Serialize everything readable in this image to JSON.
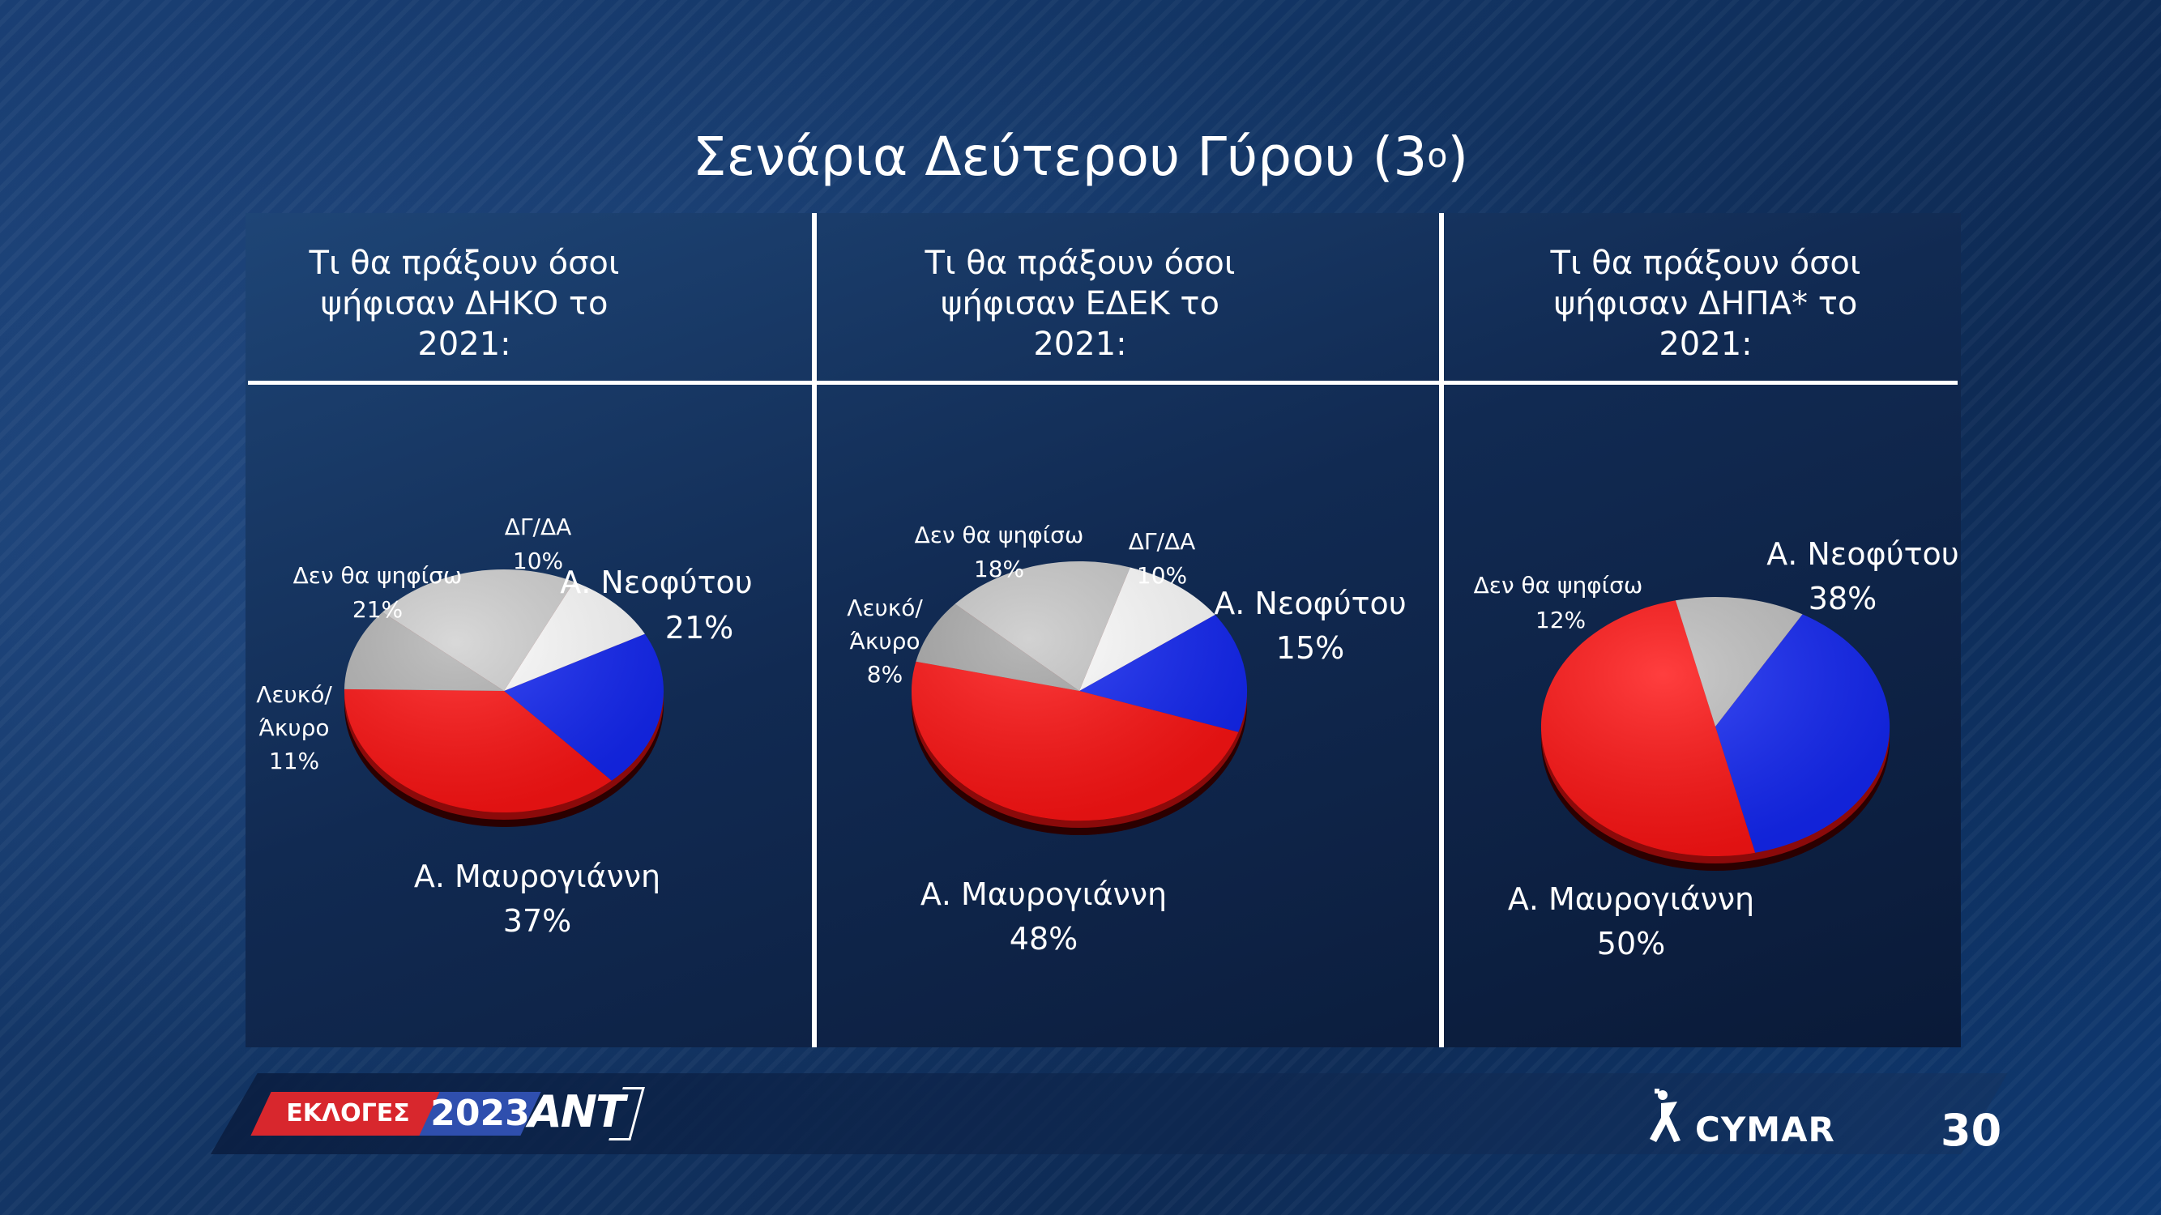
{
  "title": {
    "main": "Σενάρια Δεύτερου Γύρου (3",
    "sup": "ο",
    "close": ")"
  },
  "chart_data": [
    {
      "type": "pie",
      "title": [
        "Τι θα πράξουν όσοι",
        "ψήφισαν ΔΗΚΟ το",
        "2021:"
      ],
      "slices": [
        {
          "label": "Α. Νεοφύτου",
          "value": 21,
          "text": "21%",
          "color": "#1428f5"
        },
        {
          "label": "Α. Μαυρογιάννη",
          "value": 37,
          "text": "37%",
          "color": "#ff1414"
        },
        {
          "label": "Λευκό/ Άκυρο",
          "value": 11,
          "text": "11%",
          "color": "#b4b4b4"
        },
        {
          "label": "Δεν θα ψηφίσω",
          "value": 21,
          "text": "21%",
          "color": "#d0d0d0"
        },
        {
          "label": "ΔΓ/ΔΑ",
          "value": 10,
          "text": "10%",
          "color": "#ffffff"
        }
      ]
    },
    {
      "type": "pie",
      "title": [
        "Τι θα πράξουν όσοι",
        "ψήφισαν ΕΔΕΚ το",
        "2021:"
      ],
      "slices": [
        {
          "label": "Α. Νεοφύτου",
          "value": 15,
          "text": "15%",
          "color": "#1428f5"
        },
        {
          "label": "Α. Μαυρογιάννη",
          "value": 48,
          "text": "48%",
          "color": "#ff1414"
        },
        {
          "label": "Λευκό/ Άκυρο",
          "value": 8,
          "text": "8%",
          "color": "#a8a8a8"
        },
        {
          "label": "Δεν θα ψηφίσω",
          "value": 18,
          "text": "18%",
          "color": "#c8c8c8"
        },
        {
          "label": "ΔΓ/ΔΑ",
          "value": 10,
          "text": "10%",
          "color": "#ffffff"
        }
      ]
    },
    {
      "type": "pie",
      "title": [
        "Τι θα πράξουν όσοι",
        "ψήφισαν ΔΗΠΑ* το",
        "2021:"
      ],
      "slices": [
        {
          "label": "Α. Νεοφύτου",
          "value": 38,
          "text": "38%",
          "color": "#1428f5"
        },
        {
          "label": "Α. Μαυρογιάννη",
          "value": 50,
          "text": "50%",
          "color": "#ff1414"
        },
        {
          "label": "Δεν θα ψηφίσω",
          "value": 12,
          "text": "12%",
          "color": "#c0c0c0"
        }
      ]
    }
  ],
  "footer": {
    "badge_text": "ΕΚΛΟΓΕΣ",
    "badge_year": "2023",
    "channel": "ANT",
    "brand": "CYMAR",
    "page_number": "30"
  }
}
